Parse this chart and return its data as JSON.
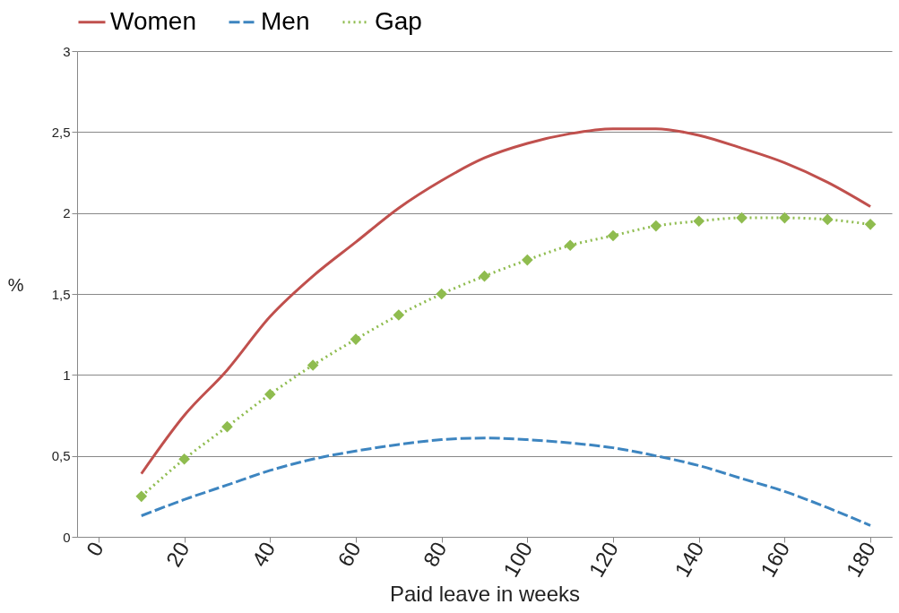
{
  "chart_data": {
    "type": "line",
    "xlabel": "Paid leave in weeks",
    "ylabel": "%",
    "x": [
      10,
      20,
      30,
      40,
      50,
      60,
      70,
      80,
      90,
      100,
      110,
      120,
      130,
      140,
      150,
      160,
      170,
      180
    ],
    "series": [
      {
        "name": "Women",
        "color": "#c0504d",
        "line_style": "solid",
        "marker": "none",
        "values": [
          0.39,
          0.75,
          1.03,
          1.36,
          1.61,
          1.82,
          2.03,
          2.2,
          2.34,
          2.43,
          2.49,
          2.52,
          2.52,
          2.48,
          2.4,
          2.31,
          2.19,
          2.04
        ]
      },
      {
        "name": "Men",
        "color": "#3d85c0",
        "line_style": "dashed",
        "marker": "none",
        "values": [
          0.13,
          0.23,
          0.32,
          0.41,
          0.48,
          0.53,
          0.57,
          0.6,
          0.61,
          0.6,
          0.58,
          0.55,
          0.5,
          0.44,
          0.36,
          0.28,
          0.18,
          0.07
        ]
      },
      {
        "name": "Gap",
        "color": "#8fbc4f",
        "line_style": "dotted",
        "marker": "diamond",
        "values": [
          0.25,
          0.48,
          0.68,
          0.88,
          1.06,
          1.22,
          1.37,
          1.5,
          1.61,
          1.71,
          1.8,
          1.86,
          1.92,
          1.95,
          1.97,
          1.97,
          1.96,
          1.93
        ]
      }
    ],
    "xlim": [
      -5,
      185
    ],
    "xticks": [
      0,
      20,
      40,
      60,
      80,
      100,
      120,
      140,
      160,
      180
    ],
    "ylim": [
      0,
      3
    ],
    "yticks": [
      0,
      {
        "value": 0.5,
        "label": "0,5"
      },
      1,
      {
        "value": 1.5,
        "label": "1,5"
      },
      2,
      {
        "value": 2.5,
        "label": "2,5"
      },
      3
    ],
    "grid": "y",
    "legend": "top"
  }
}
